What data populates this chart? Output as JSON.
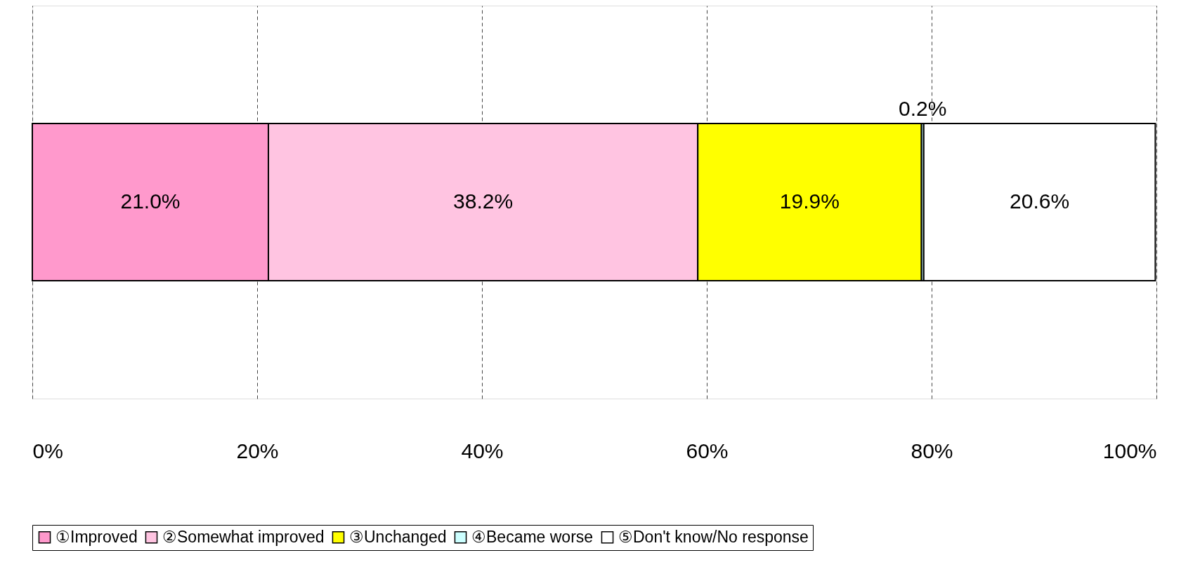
{
  "chart_data": {
    "type": "bar",
    "orientation": "horizontal",
    "stacked": true,
    "categories": [
      null
    ],
    "series": [
      {
        "name": "①Improved",
        "color": "#ff99cc",
        "values": [
          21.0
        ],
        "value_labels": [
          "21.0%"
        ]
      },
      {
        "name": "②Somewhat improved",
        "color": "#ffc4e1",
        "values": [
          38.2
        ],
        "value_labels": [
          "38.2%"
        ]
      },
      {
        "name": "③Unchanged",
        "color": "#ffff00",
        "values": [
          19.9
        ],
        "value_labels": [
          "19.9%"
        ]
      },
      {
        "name": "④Became worse",
        "color": "#ccffff",
        "values": [
          0.2
        ],
        "value_labels": [
          "0.2%"
        ]
      },
      {
        "name": "⑤Don't know/No response",
        "color": "#ffffff",
        "values": [
          20.6
        ],
        "value_labels": [
          "20.6%"
        ]
      }
    ],
    "xlim": [
      0,
      100
    ],
    "xticks": [
      {
        "value": 0,
        "label": "0%"
      },
      {
        "value": 20,
        "label": "20%"
      },
      {
        "value": 40,
        "label": "40%"
      },
      {
        "value": 60,
        "label": "60%"
      },
      {
        "value": 80,
        "label": "80%"
      },
      {
        "value": 100,
        "label": "100%"
      }
    ],
    "grid": "x",
    "legend": "bottom",
    "tick_labels": "x"
  }
}
